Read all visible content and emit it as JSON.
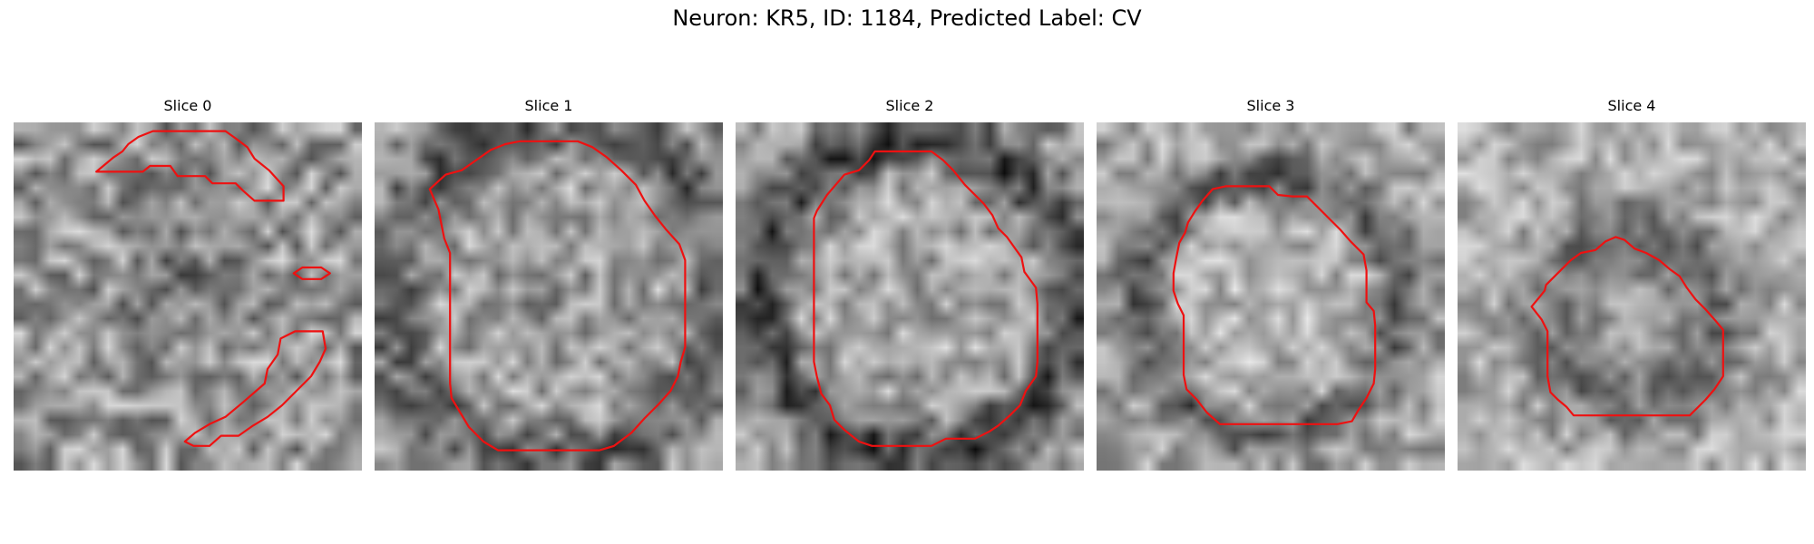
{
  "figure": {
    "title": "Neuron: KR5, ID: 1184, Predicted Label: CV"
  },
  "colors": {
    "contour": "#ee1111"
  },
  "slices": [
    {
      "title": "Slice 0",
      "contours": [
        [
          [
            6.9,
            2.4
          ],
          [
            5.7,
            3.4
          ],
          [
            8.9,
            3.4
          ],
          [
            9.4,
            3.0
          ],
          [
            10.8,
            3.0
          ],
          [
            11.3,
            3.7
          ],
          [
            13.2,
            3.7
          ],
          [
            13.7,
            4.2
          ],
          [
            15.3,
            4.2
          ],
          [
            15.8,
            4.7
          ],
          [
            16.6,
            5.4
          ],
          [
            17.6,
            5.4
          ],
          [
            18.6,
            5.4
          ],
          [
            18.6,
            4.4
          ],
          [
            17.6,
            3.3
          ],
          [
            16.6,
            2.5
          ],
          [
            16.1,
            1.7
          ],
          [
            15.3,
            1.1
          ],
          [
            14.6,
            0.6
          ],
          [
            13.1,
            0.6
          ],
          [
            9.6,
            0.6
          ],
          [
            8.6,
            1.0
          ],
          [
            7.9,
            1.5
          ],
          [
            7.5,
            2.0
          ]
        ],
        [
          [
            19.3,
            10.4
          ],
          [
            19.9,
            10.0
          ],
          [
            21.2,
            10.0
          ],
          [
            21.8,
            10.4
          ],
          [
            21.2,
            10.8
          ],
          [
            19.9,
            10.8
          ]
        ],
        [
          [
            18.4,
            14.9
          ],
          [
            19.4,
            14.4
          ],
          [
            21.3,
            14.4
          ],
          [
            21.5,
            15.6
          ],
          [
            21.1,
            16.5
          ],
          [
            20.5,
            17.5
          ],
          [
            19.5,
            18.5
          ],
          [
            18.5,
            19.5
          ],
          [
            17.5,
            20.3
          ],
          [
            16.5,
            20.9
          ],
          [
            15.5,
            21.6
          ],
          [
            14.3,
            21.6
          ],
          [
            13.5,
            22.3
          ],
          [
            12.4,
            22.3
          ],
          [
            11.8,
            22.0
          ],
          [
            12.5,
            21.4
          ],
          [
            13.5,
            20.8
          ],
          [
            14.6,
            20.3
          ],
          [
            15.8,
            19.3
          ],
          [
            17.3,
            18.0
          ],
          [
            17.5,
            17.0
          ],
          [
            18.2,
            16.0
          ]
        ]
      ]
    },
    {
      "title": "Slice 1",
      "contours": [
        [
          [
            3.8,
            4.6
          ],
          [
            4.9,
            3.6
          ],
          [
            6.0,
            3.3
          ],
          [
            7.0,
            2.6
          ],
          [
            8.0,
            1.9
          ],
          [
            9.0,
            1.5
          ],
          [
            10.0,
            1.3
          ],
          [
            11.0,
            1.3
          ],
          [
            12.0,
            1.3
          ],
          [
            13.0,
            1.3
          ],
          [
            14.0,
            1.3
          ],
          [
            15.0,
            1.7
          ],
          [
            16.0,
            2.4
          ],
          [
            17.0,
            3.3
          ],
          [
            18.0,
            4.3
          ],
          [
            18.6,
            5.4
          ],
          [
            19.3,
            6.4
          ],
          [
            20.1,
            7.4
          ],
          [
            21.0,
            8.4
          ],
          [
            21.4,
            9.5
          ],
          [
            21.4,
            10.5
          ],
          [
            21.4,
            11.5
          ],
          [
            21.4,
            12.5
          ],
          [
            21.4,
            13.5
          ],
          [
            21.4,
            14.5
          ],
          [
            21.4,
            15.5
          ],
          [
            21.1,
            16.5
          ],
          [
            20.9,
            17.5
          ],
          [
            20.4,
            18.5
          ],
          [
            19.6,
            19.4
          ],
          [
            18.6,
            20.4
          ],
          [
            17.7,
            21.4
          ],
          [
            16.5,
            22.3
          ],
          [
            15.5,
            22.6
          ],
          [
            14.5,
            22.6
          ],
          [
            13.5,
            22.6
          ],
          [
            12.5,
            22.6
          ],
          [
            11.5,
            22.6
          ],
          [
            10.5,
            22.6
          ],
          [
            9.5,
            22.6
          ],
          [
            8.5,
            22.6
          ],
          [
            7.5,
            22.0
          ],
          [
            6.5,
            21.0
          ],
          [
            5.9,
            20.0
          ],
          [
            5.3,
            19.0
          ],
          [
            5.2,
            18.0
          ],
          [
            5.2,
            17.0
          ],
          [
            5.2,
            16.0
          ],
          [
            5.2,
            15.0
          ],
          [
            5.2,
            14.0
          ],
          [
            5.2,
            13.0
          ],
          [
            5.2,
            12.0
          ],
          [
            5.2,
            11.0
          ],
          [
            5.2,
            10.0
          ],
          [
            5.2,
            9.0
          ],
          [
            4.8,
            8.0
          ],
          [
            4.6,
            7.0
          ],
          [
            4.4,
            6.0
          ],
          [
            4.1,
            5.3
          ]
        ],
        []
      ]
    },
    {
      "title": "Slice 2",
      "contours": [
        [
          [
            5.6,
            6.1
          ],
          [
            6.3,
            5.0
          ],
          [
            6.9,
            4.3
          ],
          [
            7.5,
            3.6
          ],
          [
            8.5,
            3.3
          ],
          [
            9.2,
            2.6
          ],
          [
            9.6,
            2.0
          ],
          [
            10.5,
            2.0
          ],
          [
            11.5,
            2.0
          ],
          [
            12.5,
            2.0
          ],
          [
            13.5,
            2.0
          ],
          [
            14.3,
            2.6
          ],
          [
            15.0,
            3.3
          ],
          [
            15.8,
            4.3
          ],
          [
            16.5,
            5.0
          ],
          [
            17.1,
            5.6
          ],
          [
            17.7,
            6.4
          ],
          [
            18.1,
            7.3
          ],
          [
            18.7,
            7.9
          ],
          [
            19.2,
            8.6
          ],
          [
            19.7,
            9.3
          ],
          [
            19.9,
            10.3
          ],
          [
            20.7,
            11.4
          ],
          [
            20.8,
            12.5
          ],
          [
            20.8,
            13.5
          ],
          [
            20.8,
            14.5
          ],
          [
            20.8,
            15.5
          ],
          [
            20.8,
            16.5
          ],
          [
            20.7,
            17.5
          ],
          [
            20.0,
            18.5
          ],
          [
            19.6,
            19.5
          ],
          [
            18.9,
            20.2
          ],
          [
            18.1,
            20.9
          ],
          [
            17.5,
            21.3
          ],
          [
            16.5,
            21.8
          ],
          [
            15.4,
            21.8
          ],
          [
            14.5,
            21.8
          ],
          [
            13.5,
            22.3
          ],
          [
            12.4,
            22.3
          ],
          [
            11.4,
            22.3
          ],
          [
            10.4,
            22.3
          ],
          [
            9.4,
            22.3
          ],
          [
            8.5,
            22.0
          ],
          [
            7.5,
            21.2
          ],
          [
            6.8,
            20.5
          ],
          [
            6.5,
            19.5
          ],
          [
            5.9,
            18.7
          ],
          [
            5.6,
            17.5
          ],
          [
            5.4,
            16.5
          ],
          [
            5.4,
            15.5
          ],
          [
            5.4,
            14.5
          ],
          [
            5.4,
            13.5
          ],
          [
            5.4,
            12.5
          ],
          [
            5.4,
            11.5
          ],
          [
            5.4,
            10.5
          ],
          [
            5.4,
            9.5
          ],
          [
            5.4,
            8.5
          ],
          [
            5.4,
            7.5
          ],
          [
            5.4,
            6.6
          ]
        ],
        []
      ]
    },
    {
      "title": "Slice 3",
      "contours": [
        [
          [
            6.3,
            6.9
          ],
          [
            6.8,
            6.1
          ],
          [
            7.3,
            5.4
          ],
          [
            8.0,
            4.6
          ],
          [
            8.9,
            4.4
          ],
          [
            9.9,
            4.4
          ],
          [
            10.9,
            4.4
          ],
          [
            11.9,
            4.4
          ],
          [
            12.5,
            5.0
          ],
          [
            13.5,
            5.1
          ],
          [
            14.5,
            5.1
          ],
          [
            15.2,
            5.8
          ],
          [
            16.0,
            6.6
          ],
          [
            16.8,
            7.4
          ],
          [
            17.5,
            8.2
          ],
          [
            18.4,
            9.1
          ],
          [
            18.6,
            10.2
          ],
          [
            18.6,
            11.3
          ],
          [
            18.6,
            12.4
          ],
          [
            19.1,
            13.0
          ],
          [
            19.2,
            14.0
          ],
          [
            19.2,
            15.0
          ],
          [
            19.2,
            16.0
          ],
          [
            19.2,
            17.0
          ],
          [
            19.1,
            18.0
          ],
          [
            18.6,
            19.0
          ],
          [
            18.0,
            19.9
          ],
          [
            17.6,
            20.6
          ],
          [
            16.6,
            20.8
          ],
          [
            15.5,
            20.8
          ],
          [
            14.5,
            20.8
          ],
          [
            13.5,
            20.8
          ],
          [
            12.5,
            20.8
          ],
          [
            11.5,
            20.8
          ],
          [
            10.5,
            20.8
          ],
          [
            9.5,
            20.8
          ],
          [
            8.5,
            20.8
          ],
          [
            7.6,
            20.0
          ],
          [
            6.9,
            19.1
          ],
          [
            6.2,
            18.4
          ],
          [
            6.0,
            17.4
          ],
          [
            6.0,
            16.3
          ],
          [
            6.0,
            15.3
          ],
          [
            6.0,
            14.3
          ],
          [
            6.0,
            13.3
          ],
          [
            5.6,
            12.5
          ],
          [
            5.3,
            11.6
          ],
          [
            5.3,
            10.4
          ],
          [
            5.5,
            9.3
          ],
          [
            5.7,
            8.3
          ],
          [
            6.1,
            7.6
          ]
        ],
        []
      ]
    },
    {
      "title": "Slice 4",
      "contours": [
        [
          [
            6.1,
            11.2
          ],
          [
            7.1,
            10.2
          ],
          [
            7.8,
            9.5
          ],
          [
            8.5,
            9.0
          ],
          [
            9.5,
            8.8
          ],
          [
            10.2,
            8.2
          ],
          [
            10.9,
            7.9
          ],
          [
            11.5,
            8.1
          ],
          [
            12.2,
            8.7
          ],
          [
            13.0,
            9.0
          ],
          [
            13.9,
            9.5
          ],
          [
            14.6,
            10.1
          ],
          [
            15.3,
            10.6
          ],
          [
            15.8,
            11.4
          ],
          [
            16.4,
            12.2
          ],
          [
            17.1,
            12.9
          ],
          [
            17.8,
            13.7
          ],
          [
            18.3,
            14.3
          ],
          [
            18.3,
            15.4
          ],
          [
            18.3,
            16.5
          ],
          [
            18.3,
            17.5
          ],
          [
            17.7,
            18.4
          ],
          [
            17.1,
            19.1
          ],
          [
            16.6,
            19.6
          ],
          [
            16.0,
            20.2
          ],
          [
            15.0,
            20.2
          ],
          [
            14.0,
            20.2
          ],
          [
            13.0,
            20.2
          ],
          [
            12.0,
            20.2
          ],
          [
            11.0,
            20.2
          ],
          [
            10.0,
            20.2
          ],
          [
            9.0,
            20.2
          ],
          [
            8.0,
            20.2
          ],
          [
            7.5,
            19.6
          ],
          [
            6.9,
            19.1
          ],
          [
            6.4,
            18.6
          ],
          [
            6.2,
            17.5
          ],
          [
            6.2,
            16.4
          ],
          [
            6.2,
            15.4
          ],
          [
            6.2,
            14.4
          ],
          [
            5.8,
            13.6
          ],
          [
            5.1,
            12.7
          ],
          [
            5.6,
            12.1
          ],
          [
            6.0,
            11.6
          ]
        ],
        []
      ]
    }
  ]
}
